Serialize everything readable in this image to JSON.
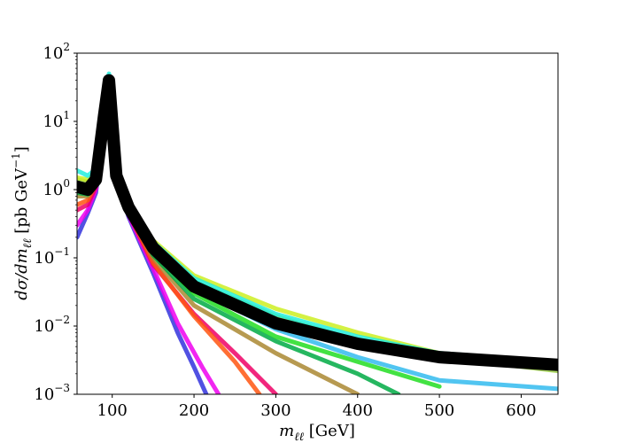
{
  "chart_data": {
    "type": "line",
    "title": "",
    "xlabel": "m_ℓℓ [GeV]",
    "ylabel": "dσ/dm_ℓℓ [pb GeV⁻¹]",
    "xlabel_parts": {
      "symbol": "m",
      "sub": "ℓℓ",
      "unit": " [GeV]"
    },
    "ylabel_parts": {
      "prefix": "dσ/dm",
      "sub": "ℓℓ",
      "unit": " [pb GeV",
      "exp": "−1",
      "close": "]"
    },
    "xlim": [
      57,
      645
    ],
    "ylim": [
      0.001,
      100
    ],
    "yscale": "log",
    "grid": false,
    "legend": "none",
    "x_ticks": [
      {
        "value": 100,
        "label": "100"
      },
      {
        "value": 200,
        "label": "200"
      },
      {
        "value": 300,
        "label": "300"
      },
      {
        "value": 400,
        "label": "400"
      },
      {
        "value": 500,
        "label": "500"
      },
      {
        "value": 600,
        "label": "600"
      }
    ],
    "y_ticks": [
      {
        "value": 0.001,
        "base": "10",
        "exp": "−3"
      },
      {
        "value": 0.01,
        "base": "10",
        "exp": "−2"
      },
      {
        "value": 0.1,
        "base": "10",
        "exp": "−1"
      },
      {
        "value": 1,
        "base": "10",
        "exp": "0"
      },
      {
        "value": 10,
        "base": "10",
        "exp": "1"
      },
      {
        "value": 100,
        "base": "10",
        "exp": "2"
      }
    ],
    "series": [
      {
        "color": "#3333dd",
        "x": [
          57,
          70,
          80,
          90,
          96,
          105,
          120,
          150,
          180,
          200,
          215
        ],
        "y": [
          0.2,
          0.45,
          0.9,
          8,
          35,
          1.5,
          0.4,
          0.06,
          0.008,
          0.0025,
          0.001
        ]
      },
      {
        "color": "#ee00ee",
        "x": [
          57,
          70,
          80,
          90,
          96,
          105,
          120,
          150,
          180,
          210,
          230
        ],
        "y": [
          0.3,
          0.5,
          1.0,
          9,
          36,
          1.5,
          0.42,
          0.07,
          0.011,
          0.0025,
          0.001
        ]
      },
      {
        "color": "#ee0066",
        "x": [
          57,
          70,
          80,
          90,
          96,
          105,
          120,
          150,
          200,
          250,
          300
        ],
        "y": [
          0.5,
          0.6,
          1.1,
          10,
          37,
          1.55,
          0.45,
          0.08,
          0.015,
          0.004,
          0.001
        ]
      },
      {
        "color": "#ff5511",
        "x": [
          57,
          70,
          80,
          90,
          96,
          105,
          120,
          150,
          200,
          250,
          280
        ],
        "y": [
          0.6,
          0.7,
          1.2,
          10,
          38,
          1.55,
          0.46,
          0.085,
          0.014,
          0.003,
          0.001
        ]
      },
      {
        "color": "#aa8833",
        "x": [
          57,
          70,
          80,
          90,
          96,
          105,
          120,
          150,
          200,
          300,
          400
        ],
        "y": [
          0.8,
          0.8,
          1.2,
          11,
          38,
          1.6,
          0.48,
          0.1,
          0.02,
          0.004,
          0.001
        ]
      },
      {
        "color": "#00aa44",
        "x": [
          57,
          70,
          80,
          90,
          96,
          105,
          120,
          150,
          200,
          300,
          400,
          450
        ],
        "y": [
          0.9,
          0.85,
          1.3,
          11,
          39,
          1.6,
          0.5,
          0.11,
          0.025,
          0.006,
          0.002,
          0.001
        ]
      },
      {
        "color": "#22dd22",
        "x": [
          57,
          70,
          80,
          90,
          96,
          105,
          120,
          150,
          200,
          300,
          400,
          500
        ],
        "y": [
          1.0,
          0.9,
          1.3,
          12,
          39,
          1.6,
          0.52,
          0.12,
          0.03,
          0.007,
          0.003,
          0.0013
        ]
      },
      {
        "color": "#33bbee",
        "x": [
          57,
          70,
          80,
          90,
          96,
          105,
          120,
          150,
          200,
          300,
          400,
          500,
          645
        ],
        "y": [
          1.3,
          1.1,
          1.5,
          13,
          41,
          1.65,
          0.55,
          0.13,
          0.035,
          0.009,
          0.0035,
          0.0016,
          0.0012
        ]
      },
      {
        "color": "#99cc44",
        "x": [
          57,
          70,
          80,
          90,
          96,
          105,
          120,
          150,
          200,
          300,
          400,
          500,
          645
        ],
        "y": [
          1.4,
          1.3,
          1.6,
          14,
          42,
          1.7,
          0.6,
          0.15,
          0.045,
          0.014,
          0.006,
          0.0035,
          0.0022
        ]
      },
      {
        "color": "#ccee22",
        "x": [
          57,
          70,
          80,
          90,
          96,
          105,
          120,
          150,
          200,
          300,
          400,
          500,
          645
        ],
        "y": [
          1.5,
          1.4,
          1.7,
          15,
          44,
          1.75,
          0.65,
          0.18,
          0.055,
          0.018,
          0.008,
          0.004,
          0.0026
        ]
      },
      {
        "color": "#22eedd",
        "x": [
          57,
          70,
          80,
          90,
          96,
          105,
          120,
          150,
          200,
          300,
          400,
          500,
          645
        ],
        "y": [
          1.9,
          1.6,
          2.0,
          18,
          50,
          1.8,
          0.68,
          0.17,
          0.05,
          0.015,
          0.007,
          0.004,
          0.003
        ]
      },
      {
        "color": "#000000",
        "x": [
          57,
          70,
          80,
          90,
          96,
          105,
          120,
          150,
          200,
          300,
          400,
          500,
          645
        ],
        "y": [
          1.1,
          1.0,
          1.4,
          12,
          40,
          1.6,
          0.55,
          0.14,
          0.038,
          0.011,
          0.0055,
          0.0035,
          0.0027
        ]
      }
    ]
  }
}
